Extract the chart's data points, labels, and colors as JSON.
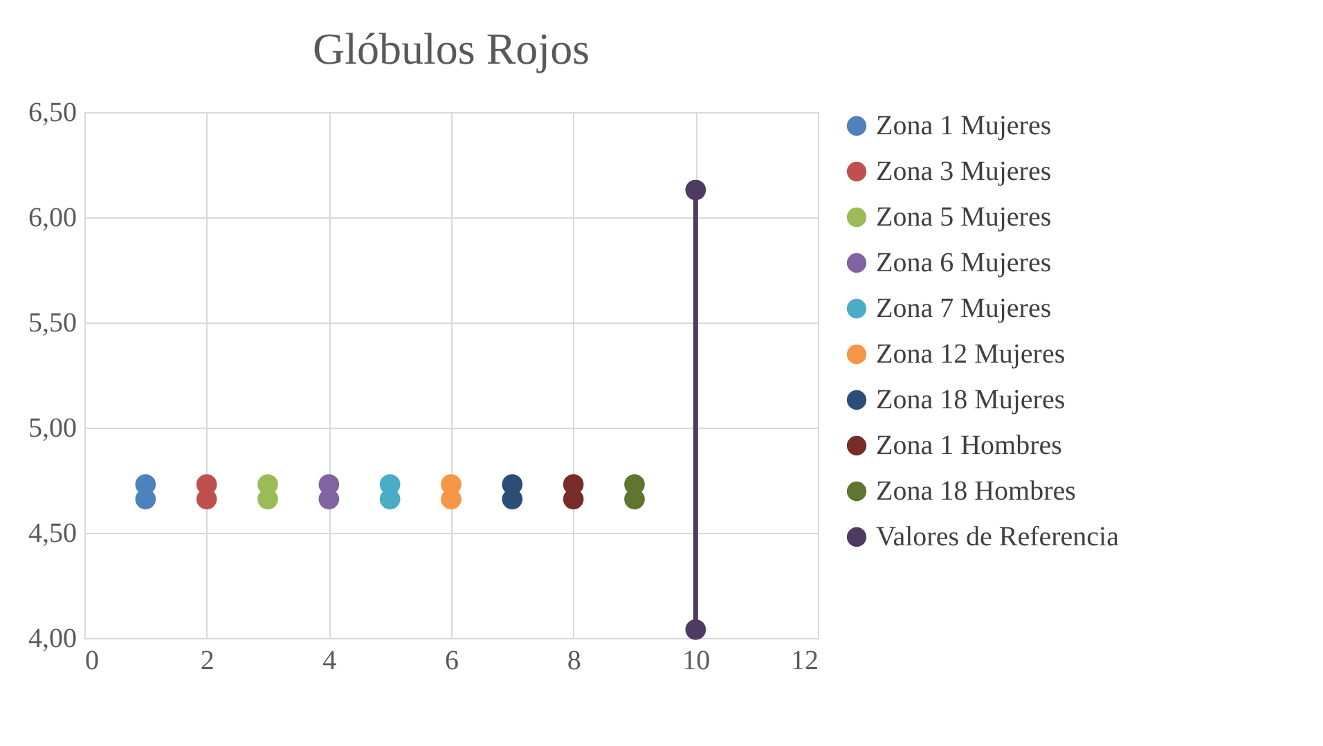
{
  "chart_data": {
    "type": "line",
    "title": "Glóbulos Rojos",
    "xlim": [
      0,
      12
    ],
    "xticks": [
      0,
      2,
      4,
      6,
      8,
      10,
      12
    ],
    "ylim": [
      4.0,
      6.5
    ],
    "yticks": [
      {
        "value": 4.0,
        "label": "4,00"
      },
      {
        "value": 4.5,
        "label": "4,50"
      },
      {
        "value": 5.0,
        "label": "5,00"
      },
      {
        "value": 5.5,
        "label": "5,50"
      },
      {
        "value": 6.0,
        "label": "6,00"
      },
      {
        "value": 6.5,
        "label": "6,50"
      }
    ],
    "grid": true,
    "legend": "right",
    "marker": "circle",
    "series": [
      {
        "name": "Zona 1 Mujeres",
        "type": "scatter",
        "color": "#4f81bd",
        "x": [
          1,
          1
        ],
        "values": [
          4.66,
          4.73
        ]
      },
      {
        "name": "Zona 3 Mujeres",
        "type": "scatter",
        "color": "#c0504d",
        "x": [
          2,
          2
        ],
        "values": [
          4.66,
          4.73
        ]
      },
      {
        "name": "Zona 5 Mujeres",
        "type": "scatter",
        "color": "#9bbb59",
        "x": [
          3,
          3
        ],
        "values": [
          4.66,
          4.73
        ]
      },
      {
        "name": "Zona 6 Mujeres",
        "type": "scatter",
        "color": "#8064a2",
        "x": [
          4,
          4
        ],
        "values": [
          4.66,
          4.73
        ]
      },
      {
        "name": "Zona 7 Mujeres",
        "type": "scatter",
        "color": "#4bacc6",
        "x": [
          5,
          5
        ],
        "values": [
          4.66,
          4.73
        ]
      },
      {
        "name": "Zona 12 Mujeres",
        "type": "scatter",
        "color": "#f79646",
        "x": [
          6,
          6
        ],
        "values": [
          4.66,
          4.73
        ]
      },
      {
        "name": "Zona 18 Mujeres",
        "type": "scatter",
        "color": "#2c4d75",
        "x": [
          7,
          7
        ],
        "values": [
          4.66,
          4.73
        ]
      },
      {
        "name": "Zona 1 Hombres",
        "type": "scatter",
        "color": "#772c2a",
        "x": [
          8,
          8
        ],
        "values": [
          4.66,
          4.73
        ]
      },
      {
        "name": "Zona 18 Hombres",
        "type": "scatter",
        "color": "#5f7530",
        "x": [
          9,
          9
        ],
        "values": [
          4.66,
          4.73
        ]
      },
      {
        "name": "Valores de Referencia",
        "color": "#4d3b62",
        "x": [
          10,
          10
        ],
        "values": [
          4.04,
          6.13
        ]
      }
    ]
  }
}
